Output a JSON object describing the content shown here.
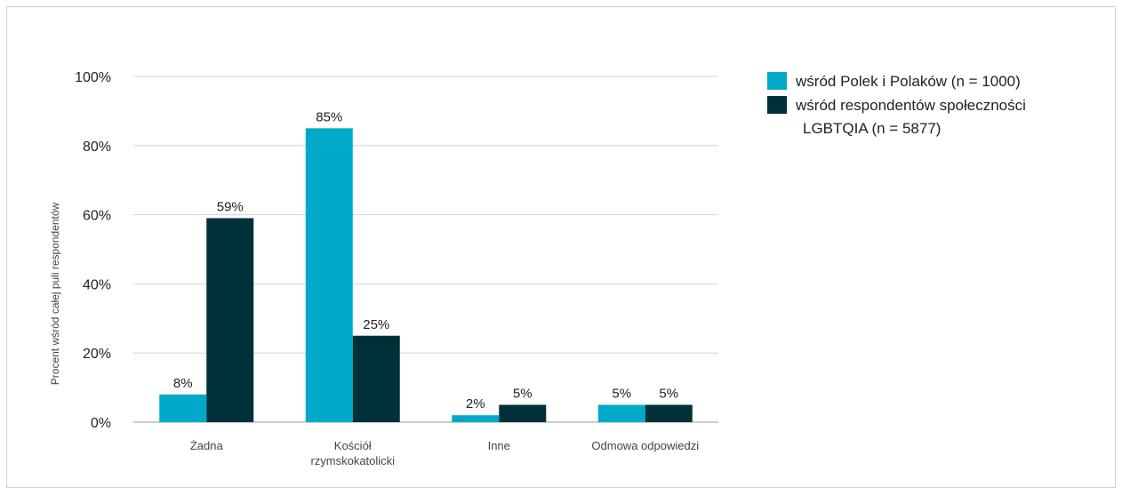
{
  "chart_data": {
    "type": "bar",
    "ylabel": "Procent wśród całej puli respondentów",
    "ylim": [
      0,
      100
    ],
    "yticks": [
      "0%",
      "20%",
      "40%",
      "60%",
      "80%",
      "100%"
    ],
    "ytick_values": [
      0,
      20,
      40,
      60,
      80,
      100
    ],
    "categories": [
      [
        "Żadna"
      ],
      [
        "Kościół",
        "rzymskokatolicki"
      ],
      [
        "Inne"
      ],
      [
        "Odmowa odpowiedzi"
      ]
    ],
    "series": [
      {
        "name": "wśród Polek i Polaków (n = 1000)",
        "legend_lines": [
          "wśród Polek i Polaków (n = 1000)"
        ],
        "color": "#00a9c8",
        "values": [
          8,
          85,
          2,
          5
        ],
        "labels": [
          "8%",
          "85%",
          "2%",
          "5%"
        ]
      },
      {
        "name": "wśród respondentów społeczności LGBTQIA (n = 5877)",
        "legend_lines": [
          "wśród respondentów społeczności",
          "LGBTQIA (n = 5877)"
        ],
        "color": "#00313a",
        "values": [
          59,
          25,
          5,
          5
        ],
        "labels": [
          "59%",
          "25%",
          "5%",
          "5%"
        ]
      }
    ],
    "grid": true,
    "legend_position": "top-right"
  }
}
